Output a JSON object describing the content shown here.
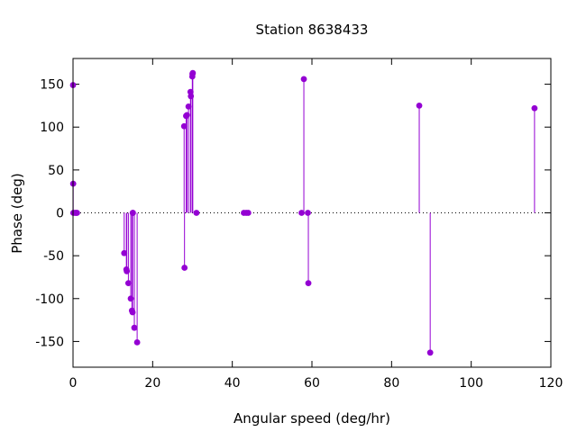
{
  "chart_data": {
    "type": "scatter",
    "style": "impulses-with-points",
    "title": "Station 8638433",
    "xlabel": "Angular speed (deg/hr)",
    "ylabel": "Phase (deg)",
    "xlim": [
      0,
      120
    ],
    "ylim": [
      -180,
      180
    ],
    "xticks": [
      0,
      20,
      40,
      60,
      80,
      100,
      120
    ],
    "yticks": [
      -150,
      -100,
      -50,
      0,
      50,
      100,
      150
    ],
    "zero_line": "dotted",
    "grid": false,
    "legend": "none",
    "color": "#9400d3",
    "series": [
      {
        "x": [
          0.0,
          0.04,
          0.08,
          0.5,
          0.82,
          1.0,
          12.85,
          13.4,
          13.5,
          13.9,
          14.5,
          14.8,
          14.96,
          15.0,
          15.04,
          15.4,
          16.1,
          27.9,
          28.0,
          28.4,
          28.6,
          29.0,
          29.5,
          29.6,
          29.96,
          30.0,
          30.08,
          31.0,
          42.9,
          43.5,
          44.0,
          57.4,
          57.97,
          58.98,
          59.1,
          86.95,
          89.7,
          115.9
        ],
        "y": [
          149,
          34,
          0,
          0,
          0,
          0,
          -47,
          -66,
          -68,
          -82,
          -100,
          -114,
          -116,
          0,
          0,
          -134,
          -151,
          101,
          -64,
          113,
          114,
          124,
          141,
          136,
          159,
          162,
          163,
          0,
          0,
          0,
          0,
          0,
          156,
          0,
          -82,
          125,
          -163,
          122
        ]
      }
    ]
  }
}
